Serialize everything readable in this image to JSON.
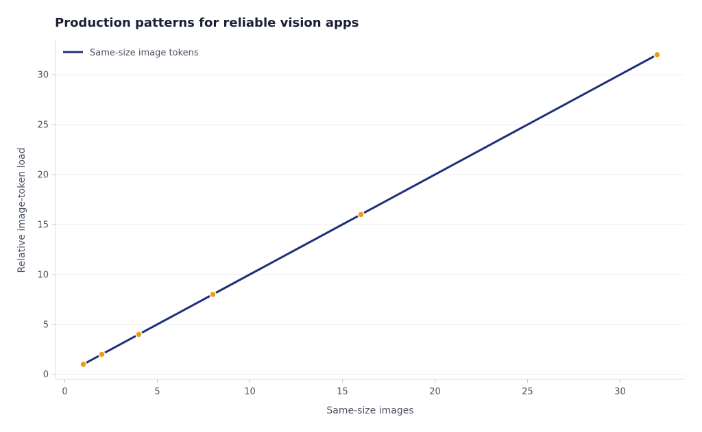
{
  "chart_data": {
    "type": "line",
    "title": "Production patterns for reliable vision apps",
    "xlabel": "Same-size images",
    "ylabel": "Relative image-token load",
    "xlim": [
      -0.5,
      33.5
    ],
    "ylim": [
      -0.5,
      33.5
    ],
    "x_ticks": [
      0,
      5,
      10,
      15,
      20,
      25,
      30
    ],
    "y_ticks": [
      0,
      5,
      10,
      15,
      20,
      25,
      30
    ],
    "grid": "horizontal",
    "legend_position": "top-left",
    "series": [
      {
        "name": "Same-size image tokens",
        "color": "#1f2f7a",
        "marker_color": "#e8a013",
        "x": [
          1,
          2,
          4,
          8,
          16,
          32
        ],
        "y": [
          1,
          2,
          4,
          8,
          16,
          32
        ]
      }
    ]
  }
}
